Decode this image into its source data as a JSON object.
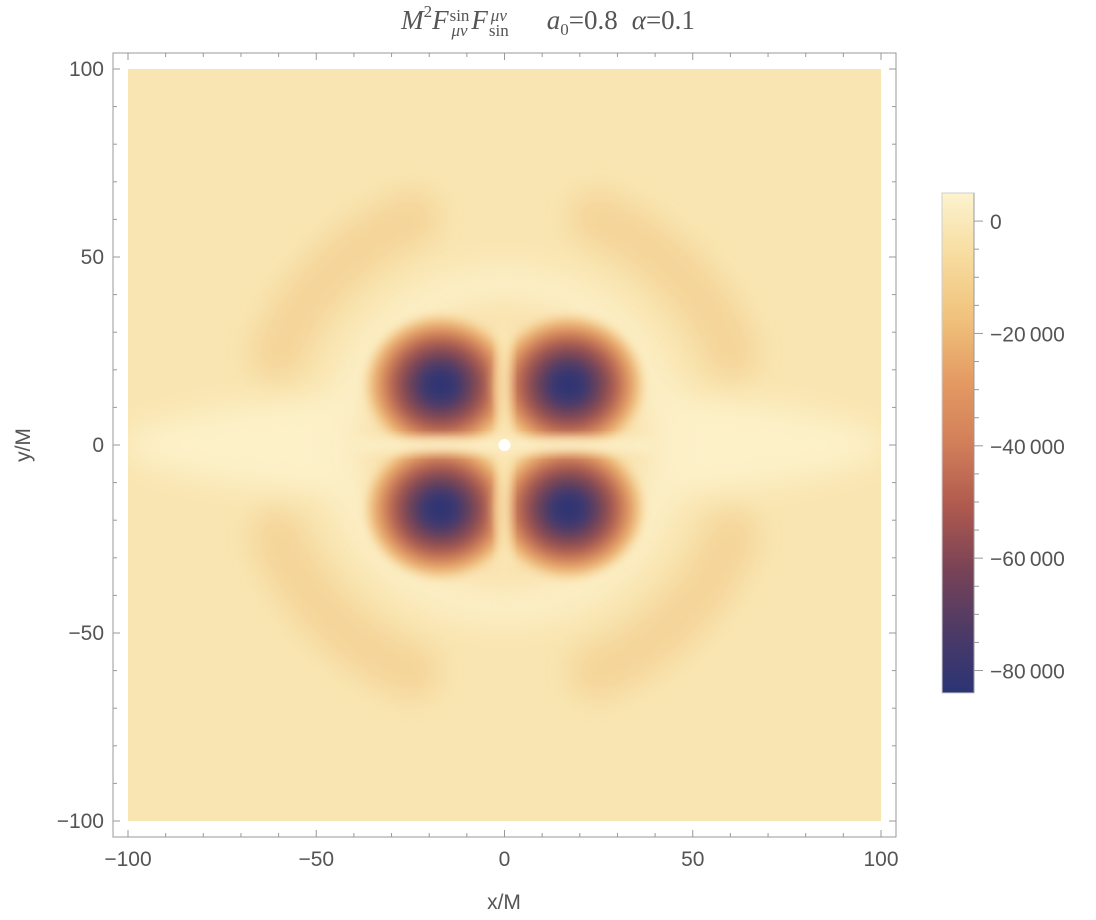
{
  "title": {
    "main": "M",
    "main_sup": "2",
    "f1": "F",
    "f1_sup": "sin",
    "f1_sub": "μν",
    "f2": "F",
    "f2_sup": "μν",
    "f2_sub": "sin",
    "param1_sym": "a",
    "param1_sub": "0",
    "param1_val": "=0.8",
    "param2_sym": "α",
    "param2_val": "=0.1"
  },
  "chart_data": {
    "type": "heatmap",
    "xlabel": "x/M",
    "ylabel": "y/M",
    "xlim": [
      -100,
      100
    ],
    "ylim": [
      -100,
      100
    ],
    "x_ticks": [
      -100,
      -50,
      0,
      50,
      100
    ],
    "y_ticks": [
      -100,
      -50,
      0,
      50,
      100
    ],
    "x_tick_labels": [
      "−100",
      "−50",
      "0",
      "50",
      "100"
    ],
    "y_tick_labels": [
      "−100",
      "−50",
      "0",
      "50",
      "100"
    ],
    "colorbar": {
      "range": [
        -84000,
        5000
      ],
      "ticks": [
        0,
        -20000,
        -40000,
        -60000,
        -80000
      ],
      "tick_labels": [
        "0",
        "−20 000",
        "−40 000",
        "−60 000",
        "−80 000"
      ],
      "colors": [
        "#fcf3cf",
        "#f7dc9f",
        "#f0c27c",
        "#e49b63",
        "#d27f5a",
        "#b05a4f",
        "#7a4356",
        "#4d3a66",
        "#2b3475"
      ]
    },
    "features": {
      "minima": [
        {
          "x": -17,
          "y": 16,
          "value": -84000
        },
        {
          "x": 17,
          "y": 16,
          "value": -84000
        },
        {
          "x": -17,
          "y": -17,
          "value": -84000
        },
        {
          "x": 17,
          "y": -17,
          "value": -84000
        }
      ],
      "outer_ring_radius": 65,
      "outer_ring_value": -9000,
      "background_value": -4000,
      "horizon_marker": {
        "x": 0,
        "y": 0
      }
    }
  }
}
